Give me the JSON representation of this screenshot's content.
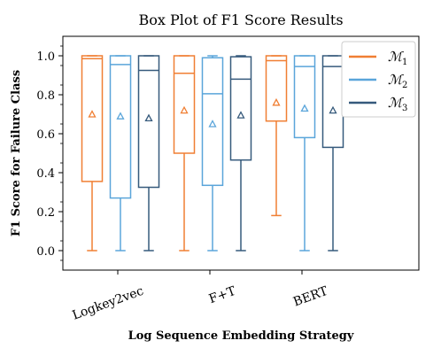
{
  "chart_data": {
    "type": "box",
    "title": "Box Plot of F1 Score Results",
    "xlabel": "Log Sequence Embedding Strategy",
    "ylabel": "F1 Score for Failure Class",
    "ylim": [
      -0.1,
      1.1
    ],
    "yticks": [
      "0.0",
      "0.2",
      "0.4",
      "0.6",
      "0.8",
      "1.0"
    ],
    "categories": [
      "Logkey2vec",
      "F+T",
      "BERT"
    ],
    "legend_position": "top-right",
    "grid": false,
    "series": [
      {
        "name": "M1",
        "legend_base": "ℳ",
        "legend_sub": "1",
        "color": "#F07F33",
        "boxes": [
          {
            "whisker_low": 0.0,
            "q1": 0.355,
            "median": 0.985,
            "q3": 1.0,
            "whisker_high": 1.0,
            "mean": 0.7
          },
          {
            "whisker_low": 0.0,
            "q1": 0.5,
            "median": 0.91,
            "q3": 1.0,
            "whisker_high": 1.0,
            "mean": 0.72
          },
          {
            "whisker_low": 0.18,
            "q1": 0.665,
            "median": 0.975,
            "q3": 1.0,
            "whisker_high": 1.0,
            "mean": 0.76
          }
        ]
      },
      {
        "name": "M2",
        "legend_base": "ℳ",
        "legend_sub": "2",
        "color": "#5AA5DA",
        "boxes": [
          {
            "whisker_low": 0.0,
            "q1": 0.27,
            "median": 0.955,
            "q3": 1.0,
            "whisker_high": 1.0,
            "mean": 0.69
          },
          {
            "whisker_low": 0.0,
            "q1": 0.335,
            "median": 0.805,
            "q3": 0.99,
            "whisker_high": 1.0,
            "mean": 0.65
          },
          {
            "whisker_low": 0.0,
            "q1": 0.58,
            "median": 0.945,
            "q3": 1.0,
            "whisker_high": 1.0,
            "mean": 0.73
          }
        ]
      },
      {
        "name": "M3",
        "legend_base": "ℳ",
        "legend_sub": "3",
        "color": "#365A7C",
        "boxes": [
          {
            "whisker_low": 0.0,
            "q1": 0.325,
            "median": 0.925,
            "q3": 1.0,
            "whisker_high": 1.0,
            "mean": 0.68
          },
          {
            "whisker_low": 0.0,
            "q1": 0.465,
            "median": 0.88,
            "q3": 0.995,
            "whisker_high": 1.0,
            "mean": 0.695
          },
          {
            "whisker_low": 0.0,
            "q1": 0.53,
            "median": 0.945,
            "q3": 1.0,
            "whisker_high": 1.0,
            "mean": 0.72
          }
        ]
      }
    ]
  }
}
